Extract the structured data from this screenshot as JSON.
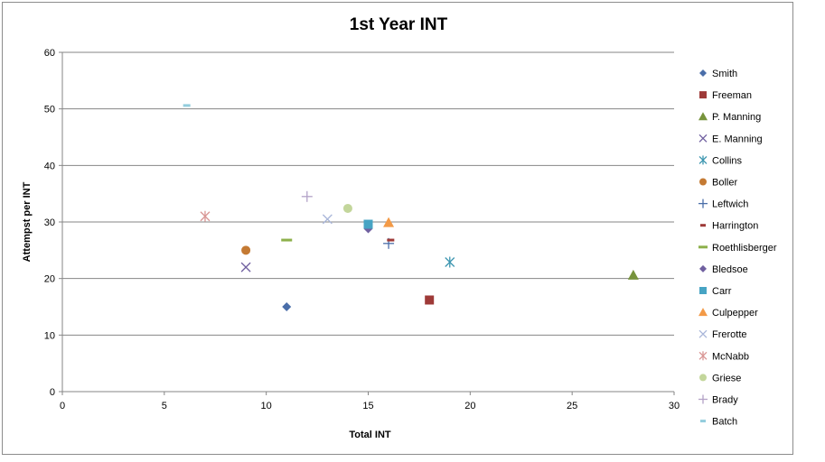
{
  "chart_data": {
    "type": "scatter",
    "title": "1st Year INT",
    "xlabel": "Total INT",
    "ylabel": "Attempst per INT",
    "xlim": [
      0,
      30
    ],
    "ylim": [
      0,
      60
    ],
    "xticks": [
      0,
      5,
      10,
      15,
      20,
      25,
      30
    ],
    "yticks": [
      0,
      10,
      20,
      30,
      40,
      50,
      60
    ],
    "grid": "horizontal",
    "legend_position": "right",
    "series": [
      {
        "name": "Smith",
        "marker": "diamond",
        "color": "#4a6ea9",
        "points": [
          [
            11,
            15.0
          ]
        ]
      },
      {
        "name": "Freeman",
        "marker": "square",
        "color": "#9e3a38",
        "points": [
          [
            18,
            16.2
          ]
        ]
      },
      {
        "name": "P. Manning",
        "marker": "triangle",
        "color": "#77933c",
        "points": [
          [
            28,
            20.6
          ]
        ]
      },
      {
        "name": "E. Manning",
        "marker": "x",
        "color": "#7060a0",
        "points": [
          [
            9,
            22.0
          ]
        ]
      },
      {
        "name": "Collins",
        "marker": "star",
        "color": "#3d96b0",
        "points": [
          [
            19,
            22.9
          ]
        ]
      },
      {
        "name": "Boller",
        "marker": "circle",
        "color": "#c47a33",
        "points": [
          [
            9,
            25.0
          ]
        ]
      },
      {
        "name": "Leftwich",
        "marker": "plus",
        "color": "#4a6ea9",
        "points": [
          [
            16,
            26.2
          ]
        ]
      },
      {
        "name": "Harrington",
        "marker": "dash",
        "color": "#9e3a38",
        "points": [
          [
            16.1,
            26.8
          ]
        ]
      },
      {
        "name": "Roethlisberger",
        "marker": "line",
        "color": "#8db04b",
        "points": [
          [
            11,
            26.8
          ]
        ]
      },
      {
        "name": "Bledsoe",
        "marker": "diamond",
        "color": "#7060a0",
        "points": [
          [
            15,
            28.8
          ]
        ]
      },
      {
        "name": "Carr",
        "marker": "square",
        "color": "#47a4c4",
        "points": [
          [
            15,
            29.6
          ]
        ]
      },
      {
        "name": "Culpepper",
        "marker": "triangle",
        "color": "#f39a47",
        "points": [
          [
            16,
            29.9
          ]
        ]
      },
      {
        "name": "Frerotte",
        "marker": "x",
        "color": "#a9b6d9",
        "points": [
          [
            13,
            30.5
          ]
        ]
      },
      {
        "name": "McNabb",
        "marker": "star",
        "color": "#d99694",
        "points": [
          [
            7,
            31.0
          ]
        ]
      },
      {
        "name": "Griese",
        "marker": "circle",
        "color": "#c3d69b",
        "points": [
          [
            14,
            32.4
          ]
        ]
      },
      {
        "name": "Brady",
        "marker": "plus",
        "color": "#b3a2c7",
        "points": [
          [
            12,
            34.5
          ]
        ]
      },
      {
        "name": "Batch",
        "marker": "dash",
        "color": "#93cddd",
        "points": [
          [
            6.1,
            50.6
          ]
        ]
      }
    ]
  }
}
